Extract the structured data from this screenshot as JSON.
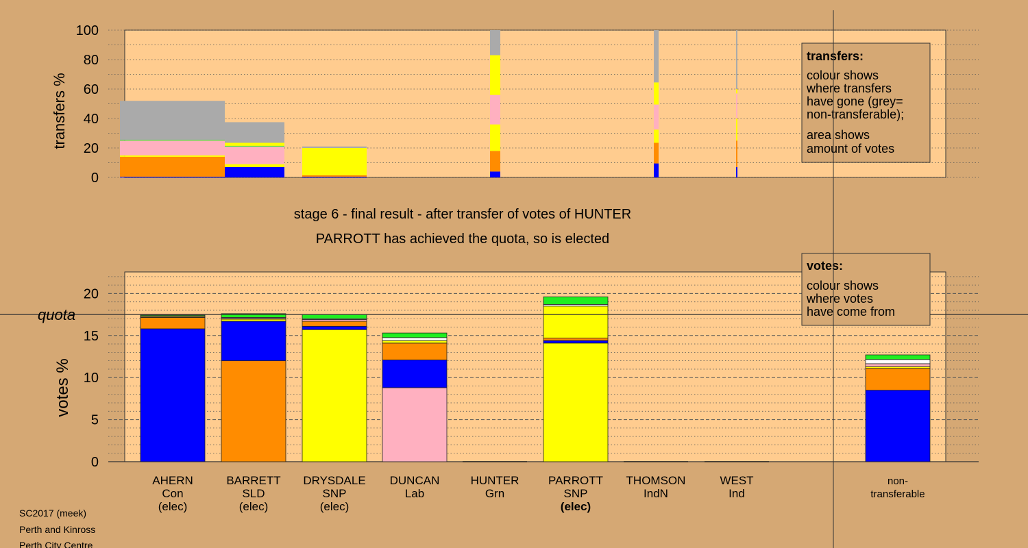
{
  "colors": {
    "background": "#d5a874",
    "panel": "#ffcc8f",
    "Con": "#0000ff",
    "SLD": "#ff8c00",
    "SNP": "#ffff00",
    "Lab": "#ffb0c0",
    "Grn": "#20ee20",
    "IndN": "#ffffff",
    "Ind": "#ffffff",
    "non-transferable": "#aaaaaa"
  },
  "chart_data": [
    {
      "id": "transfers",
      "type": "bar",
      "ylabel": "transfers %",
      "ylim": [
        0,
        100
      ],
      "yticks": [
        0,
        20,
        40,
        60,
        80,
        100
      ],
      "grid": "dotted every 10",
      "stage_note": "stacked columns with width proportional to votes transferred; colour = destination party",
      "columns": [
        {
          "candidate": "AHERN",
          "width_votes": 17.2,
          "segments": [
            {
              "to": "Con",
              "value": 0.5
            },
            {
              "to": "SLD",
              "value": 13.5
            },
            {
              "to": "SNP",
              "value": 1.0
            },
            {
              "to": "Lab",
              "value": 10.0
            },
            {
              "to": "Grn",
              "value": 0.5
            },
            {
              "to": "non-transferable",
              "value": 26.5
            }
          ]
        },
        {
          "candidate": "BARRETT",
          "width_votes": 10.0,
          "segments": [
            {
              "to": "Con",
              "value": 7.0
            },
            {
              "to": "SLD",
              "value": 0.0
            },
            {
              "to": "SNP",
              "value": 2.0
            },
            {
              "to": "Lab",
              "value": 12.0
            },
            {
              "to": "Grn",
              "value": 0.5
            },
            {
              "to": "SNP",
              "value": 2.0
            },
            {
              "to": "non-transferable",
              "value": 14.0
            }
          ]
        },
        {
          "candidate": "DRYSDALE",
          "width_votes": 11.0,
          "segments": [
            {
              "to": "Con",
              "value": 0.5
            },
            {
              "to": "SLD",
              "value": 1.0
            },
            {
              "to": "SNP",
              "value": 18.5
            },
            {
              "to": "non-transferable",
              "value": 1.0
            }
          ]
        },
        {
          "candidate": "HUNTER",
          "width_votes": 1.7,
          "segments": [
            {
              "to": "Con",
              "value": 4.0
            },
            {
              "to": "SLD",
              "value": 14.0
            },
            {
              "to": "SNP",
              "value": 18.0
            },
            {
              "to": "Lab",
              "value": 20.0
            },
            {
              "to": "SNP",
              "value": 27.0
            },
            {
              "to": "non-transferable",
              "value": 17.0
            }
          ]
        },
        {
          "candidate": "THOMSON",
          "width_votes": 0.9,
          "segments": [
            {
              "to": "Con",
              "value": 9.5
            },
            {
              "to": "SLD",
              "value": 14.0
            },
            {
              "to": "SNP",
              "value": 9.0
            },
            {
              "to": "Lab",
              "value": 17.0
            },
            {
              "to": "SNP",
              "value": 15.0
            },
            {
              "to": "non-transferable",
              "value": 35.5
            }
          ]
        },
        {
          "candidate": "WEST",
          "width_votes": 0.3,
          "segments": [
            {
              "to": "Con",
              "value": 7.0
            },
            {
              "to": "SLD",
              "value": 18.0
            },
            {
              "to": "SNP",
              "value": 15.0
            },
            {
              "to": "Lab",
              "value": 17.0
            },
            {
              "to": "SNP",
              "value": 3.0
            },
            {
              "to": "non-transferable",
              "value": 40.0
            }
          ]
        }
      ],
      "legend": {
        "title": "transfers:",
        "lines": [
          "colour shows",
          "where transfers",
          "have gone (grey=",
          "non-transferable);"
        ],
        "lines2": [
          "area shows",
          "amount of votes"
        ]
      }
    },
    {
      "id": "votes",
      "type": "bar",
      "ylabel": "votes %",
      "ylim": [
        0,
        22
      ],
      "yticks": [
        0,
        5,
        10,
        15,
        20
      ],
      "grid": "dashed every 5, dotted every 1",
      "quota": 17.5,
      "quota_label": "quota",
      "categories": [
        "AHERN",
        "BARRETT",
        "DRYSDALE",
        "DUNCAN",
        "HUNTER",
        "PARROTT",
        "THOMSON",
        "WEST",
        "non-transferable"
      ],
      "stacks": [
        {
          "candidate": "AHERN",
          "party": "Con",
          "status": "(elec)",
          "segments": [
            {
              "from": "Con",
              "value": 15.8
            },
            {
              "from": "SLD",
              "value": 1.35
            },
            {
              "from": "SNP",
              "value": 0.1
            },
            {
              "from": "Lab",
              "value": 0.1
            },
            {
              "from": "Grn",
              "value": 0.1
            },
            {
              "from": "IndN",
              "value": 0.05
            }
          ]
        },
        {
          "candidate": "BARRETT",
          "party": "SLD",
          "status": "(elec)",
          "segments": [
            {
              "from": "SLD",
              "value": 12.0
            },
            {
              "from": "Con",
              "value": 4.7
            },
            {
              "from": "SNP",
              "value": 0.25
            },
            {
              "from": "Lab",
              "value": 0.1
            },
            {
              "from": "IndN",
              "value": 0.1
            },
            {
              "from": "Grn",
              "value": 0.45
            }
          ]
        },
        {
          "candidate": "DRYSDALE",
          "party": "SNP",
          "status": "(elec)",
          "segments": [
            {
              "from": "SNP",
              "value": 15.7
            },
            {
              "from": "Con",
              "value": 0.4
            },
            {
              "from": "SLD",
              "value": 0.6
            },
            {
              "from": "Lab",
              "value": 0.2
            },
            {
              "from": "IndN",
              "value": 0.1
            },
            {
              "from": "Grn",
              "value": 0.5
            }
          ]
        },
        {
          "candidate": "DUNCAN",
          "party": "Lab",
          "status": "",
          "segments": [
            {
              "from": "Lab",
              "value": 8.8
            },
            {
              "from": "Con",
              "value": 3.3
            },
            {
              "from": "SLD",
              "value": 2.0
            },
            {
              "from": "SNP",
              "value": 0.3
            },
            {
              "from": "IndN",
              "value": 0.35
            },
            {
              "from": "Grn",
              "value": 0.55
            }
          ]
        },
        {
          "candidate": "HUNTER",
          "party": "Grn",
          "status": "",
          "segments": []
        },
        {
          "candidate": "PARROTT",
          "party": "SNP",
          "status": "(elec)",
          "segments": [
            {
              "from": "SNP",
              "value": 14.1
            },
            {
              "from": "Con",
              "value": 0.3
            },
            {
              "from": "SLD",
              "value": 0.3
            },
            {
              "from": "SNP",
              "value": 3.8
            },
            {
              "from": "IndN",
              "value": 0.2
            },
            {
              "from": "Grn",
              "value": 0.9
            }
          ]
        },
        {
          "candidate": "THOMSON",
          "party": "IndN",
          "status": "",
          "segments": []
        },
        {
          "candidate": "WEST",
          "party": "Ind",
          "status": "",
          "segments": []
        },
        {
          "candidate": "non-transferable",
          "party": "",
          "status": "",
          "segments": [
            {
              "from": "Con",
              "value": 8.5
            },
            {
              "from": "SLD",
              "value": 2.6
            },
            {
              "from": "SNP",
              "value": 0.2
            },
            {
              "from": "Lab",
              "value": 0.35
            },
            {
              "from": "IndN",
              "value": 0.5
            },
            {
              "from": "Grn",
              "value": 0.55
            }
          ]
        }
      ],
      "legend": {
        "title": "votes:",
        "lines": [
          "colour shows",
          "where votes",
          "have come from"
        ]
      }
    }
  ],
  "stage_title": "stage 6 - final result - after transfer of votes of HUNTER",
  "stage_subtitle": "PARROTT has achieved the quota, so is elected",
  "category_labels": [
    {
      "name": "AHERN",
      "party": "Con",
      "status": "(elec)",
      "bold_status": false
    },
    {
      "name": "BARRETT",
      "party": "SLD",
      "status": "(elec)",
      "bold_status": false
    },
    {
      "name": "DRYSDALE",
      "party": "SNP",
      "status": "(elec)",
      "bold_status": false
    },
    {
      "name": "DUNCAN",
      "party": "Lab",
      "status": "",
      "bold_status": false
    },
    {
      "name": "HUNTER",
      "party": "Grn",
      "status": "",
      "bold_status": false
    },
    {
      "name": "PARROTT",
      "party": "SNP",
      "status": "(elec)",
      "bold_status": true
    },
    {
      "name": "THOMSON",
      "party": "IndN",
      "status": "",
      "bold_status": false
    },
    {
      "name": "WEST",
      "party": "Ind",
      "status": "",
      "bold_status": false
    },
    {
      "name": "non-",
      "party": "transferable",
      "status": "",
      "bold_status": false
    }
  ],
  "footer": [
    "SC2017 (meek)",
    "Perth and Kinross",
    "Perth City Centre"
  ]
}
